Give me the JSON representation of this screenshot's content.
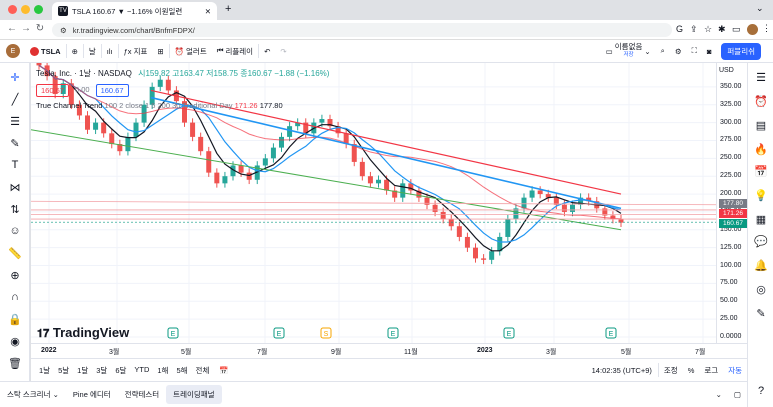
{
  "browser": {
    "tab_title": "TSLA 160.67 ▼ −1.16% 이원일련",
    "url": "kr.tradingview.com/chart/BnfmFDPX/",
    "avatar_badge": "E"
  },
  "toolbar": {
    "symbol": "TSLA",
    "interval": "날",
    "indicators": "지표",
    "alerts": "얼러트",
    "replay": "리플레이",
    "layout_name": "이름없음",
    "layout_sub": "저장",
    "publish": "퍼블리쉬"
  },
  "legend": {
    "symbol_line": "Tesla, Inc. · 1날 · NASDAQ",
    "ohlc": "시159.82 고163.47 저158.75 종160.67 −1.88 (−1.16%)",
    "price_a": "160.67",
    "price_b": "0.00",
    "price_c": "160.67",
    "indicator": "True Channel Trend",
    "indicator_params": "100 2 close 1 5 200 30 Traditional Day",
    "indicator_v1": "171.26",
    "indicator_v2": "177.80"
  },
  "price_axis": {
    "currency": "USD",
    "ticks": [
      "350.00",
      "325.00",
      "300.00",
      "275.00",
      "250.00",
      "225.00",
      "200.00",
      "175.00",
      "150.00",
      "125.00",
      "100.00",
      "75.00",
      "50.00",
      "25.00",
      "0.0000"
    ],
    "tag_top": "177.80",
    "tag_mid": "171.26",
    "tag_last": "160.67"
  },
  "time_axis": {
    "labels": [
      "2022",
      "3월",
      "5월",
      "7월",
      "9월",
      "11월",
      "2023",
      "3월",
      "5월",
      "7월"
    ]
  },
  "bottom": {
    "ranges": [
      "1날",
      "5날",
      "1달",
      "3달",
      "6달",
      "YTD",
      "1해",
      "5해",
      "전체"
    ],
    "clock": "14:02:35 (UTC+9)",
    "adjust": "조정",
    "percent": "%",
    "log": "로그",
    "auto": "자동"
  },
  "panels": [
    "스탁 스크리너",
    "Pine 에디터",
    "전략테스터",
    "트레이딩패널"
  ],
  "watermark": "TradingView",
  "colors": {
    "up": "#26a69a",
    "down": "#ef5350",
    "bg": "#ffffff",
    "accent": "#2962ff",
    "red_line": "#f23645",
    "blue_line": "#2196f3",
    "green_line": "#4caf50",
    "black_line": "#333333",
    "cyan_line": "#2196f3"
  },
  "chart_data": {
    "type": "candlestick",
    "symbol": "TSLA",
    "ylim": [
      0,
      375
    ],
    "ticks": [
      350,
      325,
      300,
      275,
      250,
      225,
      200,
      175,
      150,
      125,
      100,
      75,
      50,
      25,
      0
    ],
    "last_price": 160.67,
    "closes": [
      380,
      365,
      340,
      355,
      325,
      310,
      290,
      300,
      285,
      270,
      260,
      280,
      300,
      325,
      350,
      360,
      345,
      330,
      300,
      280,
      260,
      230,
      215,
      225,
      240,
      230,
      220,
      240,
      250,
      265,
      280,
      295,
      300,
      285,
      300,
      305,
      295,
      285,
      270,
      245,
      225,
      215,
      220,
      205,
      195,
      215,
      205,
      195,
      185,
      175,
      165,
      155,
      140,
      125,
      110,
      108,
      120,
      140,
      165,
      180,
      195,
      205,
      200,
      195,
      185,
      175,
      185,
      195,
      190,
      180,
      170,
      165,
      160
    ]
  }
}
